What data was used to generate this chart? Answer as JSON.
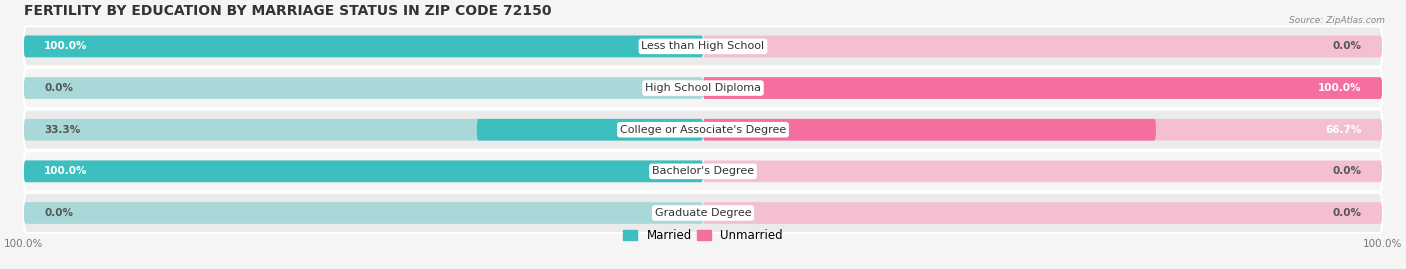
{
  "title": "FERTILITY BY EDUCATION BY MARRIAGE STATUS IN ZIP CODE 72150",
  "source": "Source: ZipAtlas.com",
  "categories": [
    "Less than High School",
    "High School Diploma",
    "College or Associate's Degree",
    "Bachelor's Degree",
    "Graduate Degree"
  ],
  "married_values": [
    100.0,
    0.0,
    33.3,
    100.0,
    0.0
  ],
  "unmarried_values": [
    0.0,
    100.0,
    66.7,
    0.0,
    0.0
  ],
  "married_color": "#3dbfbf",
  "married_light_color": "#a8d8d8",
  "unmarried_color": "#f46fa0",
  "unmarried_light_color": "#f4c0d0",
  "row_bg_odd": "#ebebeb",
  "row_bg_even": "#f5f5f5",
  "background_color": "#f5f5f5",
  "title_fontsize": 10,
  "label_fontsize": 8,
  "value_fontsize": 7.5,
  "legend_fontsize": 8.5,
  "bar_height": 0.52,
  "xlim": 100
}
